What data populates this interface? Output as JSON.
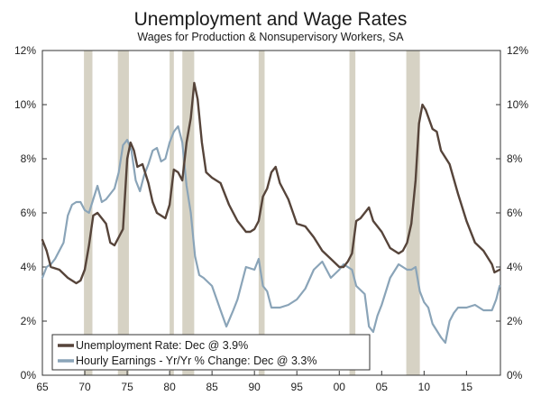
{
  "chart_data": {
    "type": "line",
    "title": "Unemployment and Wage Rates",
    "subtitle": "Wages for Production & Nonsupervisory Workers, SA",
    "x_axis": {
      "range": [
        1965,
        2019
      ],
      "ticks": [
        1965,
        1970,
        1975,
        1980,
        1985,
        1990,
        1995,
        2000,
        2005,
        2010,
        2015
      ],
      "tick_labels": [
        "65",
        "70",
        "75",
        "80",
        "85",
        "90",
        "95",
        "00",
        "05",
        "10",
        "15"
      ]
    },
    "y_axis": {
      "range": [
        0,
        12
      ],
      "ticks": [
        0,
        2,
        4,
        6,
        8,
        10,
        12
      ],
      "tick_labels": [
        "0%",
        "2%",
        "4%",
        "6%",
        "8%",
        "10%",
        "12%"
      ],
      "left_and_right": true
    },
    "grid": false,
    "legend_position": "bottom-left",
    "recessions": [
      [
        1969.9,
        1970.9
      ],
      [
        1973.9,
        1975.2
      ],
      [
        1980.0,
        1980.5
      ],
      [
        1981.5,
        1982.9
      ],
      [
        1990.5,
        1991.2
      ],
      [
        2001.2,
        2001.9
      ],
      [
        2007.9,
        2009.5
      ]
    ],
    "series": [
      {
        "name": "Unemployment Rate: Dec @ 3.9%",
        "color": "#56443a",
        "x": [
          1965.0,
          1965.5,
          1966.0,
          1967.0,
          1968.0,
          1968.5,
          1969.0,
          1969.5,
          1970.0,
          1970.5,
          1971.0,
          1971.5,
          1972.0,
          1972.5,
          1973.0,
          1973.5,
          1974.0,
          1974.5,
          1975.0,
          1975.4,
          1975.8,
          1976.2,
          1976.8,
          1977.5,
          1978.0,
          1978.5,
          1979.0,
          1979.5,
          1980.0,
          1980.5,
          1981.0,
          1981.5,
          1982.0,
          1982.5,
          1982.9,
          1983.3,
          1983.8,
          1984.3,
          1985.0,
          1986.0,
          1987.0,
          1988.0,
          1989.0,
          1989.5,
          1990.0,
          1990.5,
          1991.0,
          1991.5,
          1992.0,
          1992.5,
          1993.0,
          1994.0,
          1995.0,
          1996.0,
          1997.0,
          1998.0,
          1999.0,
          2000.0,
          2000.5,
          2001.0,
          2001.5,
          2002.0,
          2002.5,
          2003.0,
          2003.5,
          2004.0,
          2005.0,
          2006.0,
          2006.5,
          2007.0,
          2007.5,
          2008.0,
          2008.5,
          2009.0,
          2009.4,
          2009.8,
          2010.2,
          2011.0,
          2011.5,
          2012.0,
          2013.0,
          2014.0,
          2015.0,
          2016.0,
          2017.0,
          2018.0,
          2018.3,
          2018.9
        ],
        "values": [
          5.0,
          4.6,
          4.0,
          3.9,
          3.6,
          3.5,
          3.4,
          3.5,
          3.9,
          4.8,
          5.9,
          6.0,
          5.8,
          5.6,
          4.9,
          4.8,
          5.1,
          5.4,
          8.0,
          8.6,
          8.3,
          7.7,
          7.8,
          7.1,
          6.4,
          6.0,
          5.9,
          5.8,
          6.3,
          7.6,
          7.5,
          7.2,
          8.6,
          9.5,
          10.8,
          10.2,
          8.6,
          7.5,
          7.3,
          7.1,
          6.3,
          5.7,
          5.3,
          5.3,
          5.4,
          5.7,
          6.6,
          6.9,
          7.5,
          7.7,
          7.1,
          6.5,
          5.6,
          5.5,
          5.1,
          4.6,
          4.3,
          4.0,
          4.0,
          4.2,
          4.5,
          5.7,
          5.8,
          6.0,
          6.2,
          5.7,
          5.3,
          4.7,
          4.6,
          4.5,
          4.6,
          4.9,
          5.6,
          7.2,
          9.3,
          10.0,
          9.8,
          9.1,
          9.0,
          8.3,
          7.8,
          6.7,
          5.7,
          4.9,
          4.6,
          4.1,
          3.8,
          3.9
        ]
      },
      {
        "name": "Hourly Earnings - Yr/Yr % Change: Dec @ 3.3%",
        "color": "#8aa4b8",
        "x": [
          1965.0,
          1965.5,
          1966.0,
          1966.5,
          1967.0,
          1967.5,
          1968.0,
          1968.5,
          1969.0,
          1969.5,
          1970.0,
          1970.5,
          1971.0,
          1971.5,
          1972.0,
          1972.5,
          1973.0,
          1973.5,
          1974.0,
          1974.5,
          1975.0,
          1975.5,
          1976.0,
          1976.5,
          1977.0,
          1977.5,
          1978.0,
          1978.5,
          1979.0,
          1979.5,
          1980.0,
          1980.5,
          1981.0,
          1981.5,
          1982.0,
          1982.5,
          1983.0,
          1983.5,
          1984.0,
          1985.0,
          1986.0,
          1986.7,
          1987.5,
          1988.0,
          1989.0,
          1990.0,
          1990.5,
          1991.0,
          1991.5,
          1992.0,
          1993.0,
          1994.0,
          1995.0,
          1996.0,
          1997.0,
          1998.0,
          1999.0,
          2000.0,
          2000.5,
          2001.0,
          2001.5,
          2002.0,
          2003.0,
          2003.5,
          2004.0,
          2004.5,
          2005.0,
          2006.0,
          2007.0,
          2007.5,
          2008.0,
          2008.5,
          2009.0,
          2009.5,
          2010.0,
          2010.5,
          2011.0,
          2012.0,
          2012.5,
          2013.0,
          2013.5,
          2014.0,
          2015.0,
          2016.0,
          2017.0,
          2018.0,
          2018.5,
          2018.9
        ],
        "values": [
          3.6,
          4.0,
          4.1,
          4.3,
          4.6,
          4.9,
          5.9,
          6.3,
          6.4,
          6.4,
          6.1,
          6.0,
          6.5,
          7.0,
          6.4,
          6.5,
          6.7,
          6.9,
          7.5,
          8.5,
          8.7,
          8.3,
          7.2,
          6.8,
          7.4,
          7.8,
          8.3,
          8.4,
          7.9,
          8.0,
          8.6,
          9.0,
          9.2,
          8.6,
          7.0,
          6.0,
          4.4,
          3.7,
          3.6,
          3.3,
          2.4,
          1.8,
          2.4,
          2.8,
          4.0,
          3.9,
          4.3,
          3.3,
          3.1,
          2.5,
          2.5,
          2.6,
          2.8,
          3.2,
          3.9,
          4.2,
          3.6,
          3.9,
          4.1,
          4.0,
          3.9,
          3.3,
          3.0,
          1.8,
          1.6,
          2.2,
          2.6,
          3.6,
          4.1,
          4.0,
          3.9,
          3.9,
          4.0,
          3.1,
          2.7,
          2.5,
          1.9,
          1.4,
          1.2,
          2.0,
          2.3,
          2.5,
          2.5,
          2.6,
          2.4,
          2.4,
          2.8,
          3.3
        ]
      }
    ]
  }
}
